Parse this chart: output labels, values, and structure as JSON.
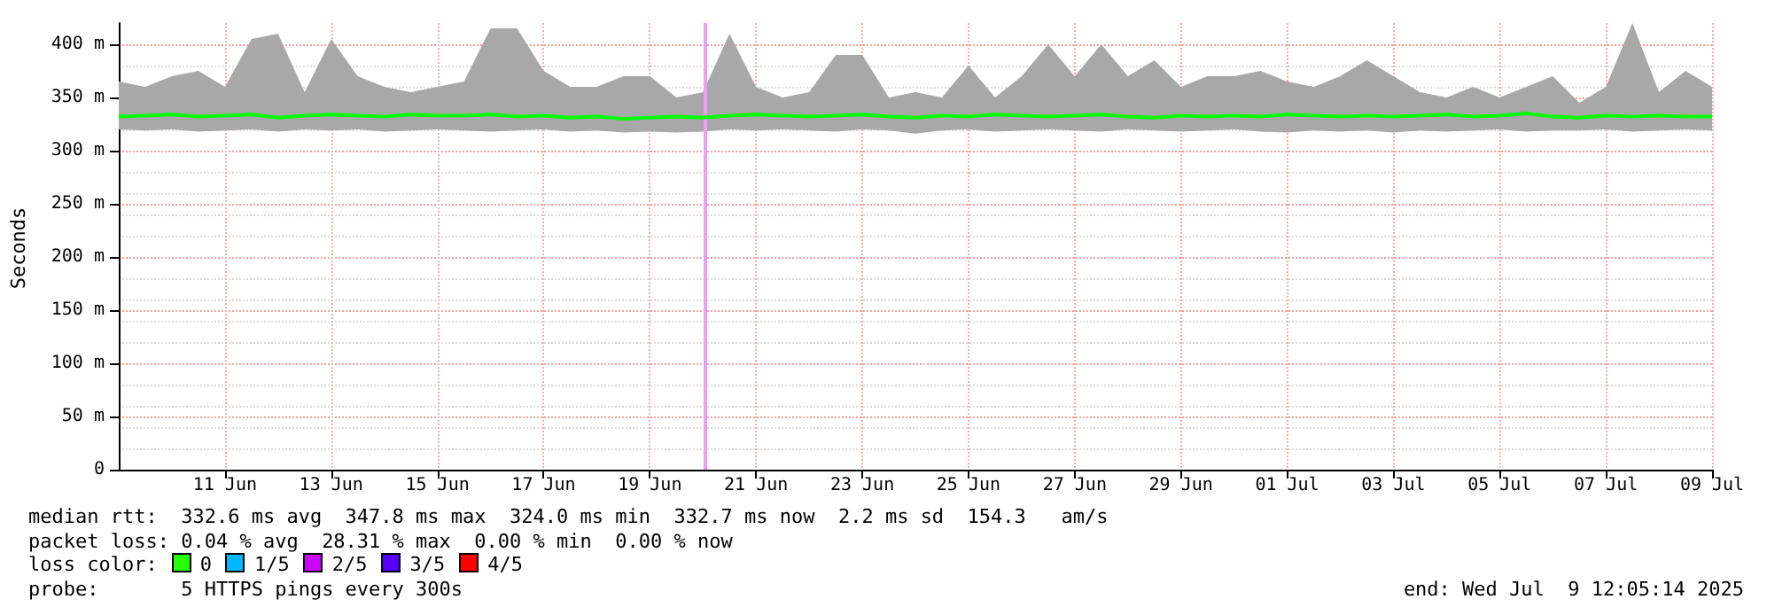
{
  "chart_data": {
    "type": "line",
    "ylabel": "Seconds",
    "x": [
      "2025-06-09T12:00",
      "2025-06-10T00:00",
      "2025-06-10T12:00",
      "2025-06-11T00:00",
      "2025-06-11T12:00",
      "2025-06-12T00:00",
      "2025-06-12T12:00",
      "2025-06-13T00:00",
      "2025-06-13T12:00",
      "2025-06-14T00:00",
      "2025-06-14T12:00",
      "2025-06-15T00:00",
      "2025-06-15T12:00",
      "2025-06-16T00:00",
      "2025-06-16T12:00",
      "2025-06-17T00:00",
      "2025-06-17T12:00",
      "2025-06-18T00:00",
      "2025-06-18T12:00",
      "2025-06-19T00:00",
      "2025-06-19T12:00",
      "2025-06-20T00:00",
      "2025-06-20T12:00",
      "2025-06-21T00:00",
      "2025-06-21T12:00",
      "2025-06-22T00:00",
      "2025-06-22T12:00",
      "2025-06-23T00:00",
      "2025-06-23T12:00",
      "2025-06-24T00:00",
      "2025-06-24T12:00",
      "2025-06-25T00:00",
      "2025-06-25T12:00",
      "2025-06-26T00:00",
      "2025-06-26T12:00",
      "2025-06-27T00:00",
      "2025-06-27T12:00",
      "2025-06-28T00:00",
      "2025-06-28T12:00",
      "2025-06-29T00:00",
      "2025-06-29T12:00",
      "2025-06-30T00:00",
      "2025-06-30T12:00",
      "2025-07-01T00:00",
      "2025-07-01T12:00",
      "2025-07-02T00:00",
      "2025-07-02T12:00",
      "2025-07-03T00:00",
      "2025-07-03T12:00",
      "2025-07-04T00:00",
      "2025-07-04T12:00",
      "2025-07-05T00:00",
      "2025-07-05T12:00",
      "2025-07-06T00:00",
      "2025-07-06T12:00",
      "2025-07-07T00:00",
      "2025-07-07T12:00",
      "2025-07-08T00:00",
      "2025-07-08T12:00",
      "2025-07-09T00:00",
      "2025-07-09T12:00"
    ],
    "series": [
      {
        "color": "#00ff00",
        "values": [
          332,
          333,
          334,
          332,
          333,
          334,
          331,
          333,
          334,
          333,
          332,
          334,
          333,
          333,
          334,
          332,
          333,
          331,
          332,
          330,
          331,
          332,
          331,
          333,
          334,
          333,
          332,
          333,
          334,
          332,
          331,
          333,
          332,
          334,
          333,
          332,
          333,
          334,
          332,
          331,
          333,
          332,
          333,
          332,
          334,
          333,
          332,
          333,
          332,
          333,
          334,
          332,
          333,
          335,
          332,
          331,
          333,
          332,
          333,
          332,
          332
        ],
        "lower": [
          320,
          319,
          320,
          318,
          319,
          320,
          318,
          320,
          319,
          320,
          318,
          319,
          320,
          319,
          318,
          319,
          320,
          318,
          319,
          317,
          318,
          317,
          318,
          320,
          319,
          320,
          319,
          318,
          320,
          319,
          316,
          319,
          320,
          318,
          319,
          320,
          319,
          318,
          320,
          319,
          318,
          319,
          320,
          318,
          317,
          319,
          318,
          319,
          317,
          319,
          318,
          319,
          320,
          318,
          319,
          319,
          320,
          318,
          319,
          320,
          319
        ],
        "upper": [
          365,
          360,
          370,
          375,
          360,
          405,
          410,
          355,
          405,
          370,
          360,
          355,
          360,
          365,
          415,
          415,
          375,
          360,
          360,
          370,
          370,
          350,
          355,
          410,
          360,
          350,
          355,
          390,
          390,
          350,
          355,
          350,
          380,
          350,
          370,
          400,
          370,
          400,
          370,
          385,
          360,
          370,
          370,
          375,
          365,
          360,
          370,
          385,
          370,
          355,
          350,
          360,
          350,
          360,
          370,
          345,
          360,
          420,
          355,
          375,
          360
        ]
      }
    ],
    "xlim": [
      "2025-06-09T12:00",
      "2025-07-09T12:00"
    ],
    "xticks": [
      {
        "value": "2025-06-11T12:00",
        "label": "11 Jun"
      },
      {
        "value": "2025-06-13T12:00",
        "label": "13 Jun"
      },
      {
        "value": "2025-06-15T12:00",
        "label": "15 Jun"
      },
      {
        "value": "2025-06-17T12:00",
        "label": "17 Jun"
      },
      {
        "value": "2025-06-19T12:00",
        "label": "19 Jun"
      },
      {
        "value": "2025-06-21T12:00",
        "label": "21 Jun"
      },
      {
        "value": "2025-06-23T12:00",
        "label": "23 Jun"
      },
      {
        "value": "2025-06-25T12:00",
        "label": "25 Jun"
      },
      {
        "value": "2025-06-27T12:00",
        "label": "27 Jun"
      },
      {
        "value": "2025-06-29T12:00",
        "label": "29 Jun"
      },
      {
        "value": "2025-07-01T12:00",
        "label": "01 Jul"
      },
      {
        "value": "2025-07-03T12:00",
        "label": "03 Jul"
      },
      {
        "value": "2025-07-05T12:00",
        "label": "05 Jul"
      },
      {
        "value": "2025-07-07T12:00",
        "label": "07 Jul"
      },
      {
        "value": "2025-07-09T12:00",
        "label": "09 Jul"
      }
    ],
    "ylim": [
      0,
      420
    ],
    "yticks": [
      0,
      {
        "value": 50,
        "label": "50 m"
      },
      {
        "value": 100,
        "label": "100 m"
      },
      {
        "value": 150,
        "label": "150 m"
      },
      {
        "value": 200,
        "label": "200 m"
      },
      {
        "value": 250,
        "label": "250 m"
      },
      {
        "value": 300,
        "label": "300 m"
      },
      {
        "value": 350,
        "label": "350 m"
      },
      {
        "value": 400,
        "label": "400 m"
      }
    ],
    "grid": true,
    "ref_lines": [
      {
        "axis": "x",
        "value": "2025-06-20T13:00",
        "color": "#f09cf8"
      }
    ],
    "annotations": [
      "median rtt:  332.6 ms avg  347.8 ms max  324.0 ms min  332.7 ms now  2.2 ms sd  154.3   am/s",
      "packet loss: 0.04 % avg  28.31 % max  0.00 % min  0.00 % now",
      "loss color:",
      "0",
      "1/5",
      "2/5",
      "3/5",
      "4/5",
      "probe:       5 HTTPS pings every 300s",
      "end: Wed Jul  9 12:05:14 2025"
    ]
  }
}
